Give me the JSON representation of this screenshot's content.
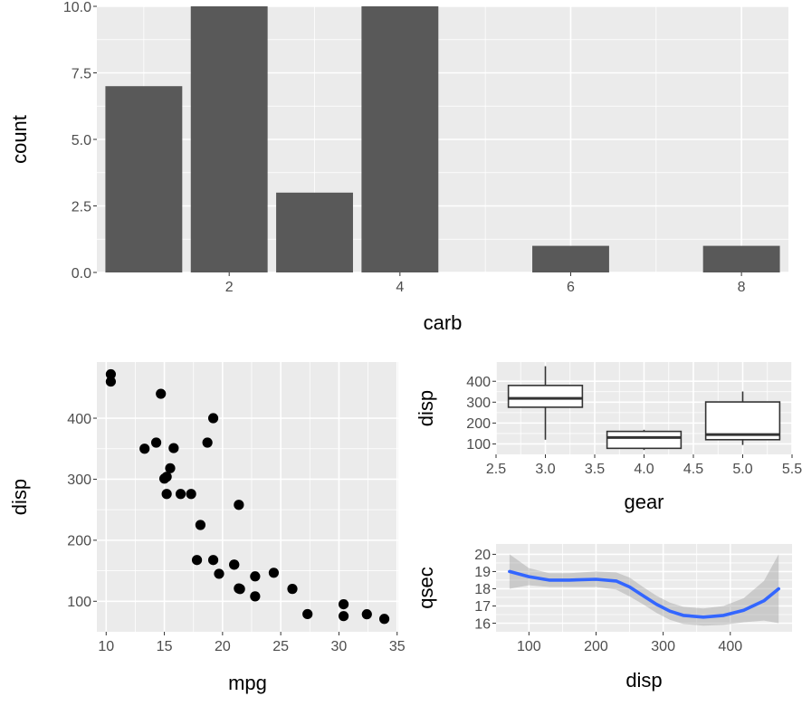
{
  "chart_data": [
    {
      "type": "bar",
      "xlabel": "carb",
      "ylabel": "count",
      "categories": [
        1,
        2,
        3,
        4,
        6,
        8
      ],
      "values": [
        7,
        10,
        3,
        10,
        1,
        1
      ],
      "xlim": [
        0.45,
        8.55
      ],
      "ylim": [
        0,
        10
      ],
      "xticks": [
        2,
        4,
        6,
        8
      ],
      "xtick_labels": [
        "2",
        "4",
        "6",
        "8"
      ],
      "yticks": [
        0,
        2.5,
        5,
        7.5,
        10
      ],
      "ytick_labels": [
        "0.0",
        "2.5",
        "5.0",
        "7.5",
        "10.0"
      ],
      "bar_color": "#595959"
    },
    {
      "type": "scatter",
      "xlabel": "mpg",
      "ylabel": "disp",
      "x": [
        21.0,
        21.0,
        22.8,
        21.4,
        18.7,
        18.1,
        14.3,
        24.4,
        22.8,
        19.2,
        17.8,
        16.4,
        17.3,
        15.2,
        10.4,
        10.4,
        14.7,
        32.4,
        30.4,
        33.9,
        21.5,
        15.5,
        15.2,
        13.3,
        19.2,
        27.3,
        26.0,
        30.4,
        15.8,
        19.7,
        15.0,
        21.4
      ],
      "y": [
        160,
        160,
        108,
        258,
        360,
        225,
        360,
        146.7,
        140.8,
        167.6,
        167.6,
        275.8,
        275.8,
        275.8,
        472,
        460,
        440,
        78.7,
        75.7,
        71.1,
        120.1,
        318,
        304,
        350,
        400,
        79,
        120.3,
        95.1,
        351,
        145,
        301,
        121
      ],
      "xlim": [
        9.2,
        35.1
      ],
      "ylim": [
        50,
        492
      ],
      "xticks": [
        10,
        15,
        20,
        25,
        30,
        35
      ],
      "xtick_labels": [
        "10",
        "15",
        "20",
        "25",
        "30",
        "35"
      ],
      "yticks": [
        100,
        200,
        300,
        400
      ],
      "ytick_labels": [
        "100",
        "200",
        "300",
        "400"
      ],
      "point_color": "#000000"
    },
    {
      "type": "box",
      "xlabel": "gear",
      "ylabel": "disp",
      "boxes": [
        {
          "x": 3,
          "min": 120.1,
          "q1": 275.8,
          "median": 318,
          "q3": 380,
          "max": 472
        },
        {
          "x": 4,
          "min": 71.1,
          "q1": 78.9,
          "median": 130.9,
          "q3": 160,
          "max": 167.6
        },
        {
          "x": 5,
          "min": 95.1,
          "q1": 120.3,
          "median": 145,
          "q3": 301,
          "max": 351
        }
      ],
      "xlim": [
        2.5,
        5.5
      ],
      "ylim": [
        50,
        492
      ],
      "xticks": [
        2.5,
        3.0,
        3.5,
        4.0,
        4.5,
        5.0,
        5.5
      ],
      "xtick_labels": [
        "2.5",
        "3.0",
        "3.5",
        "4.0",
        "4.5",
        "5.0",
        "5.5"
      ],
      "yticks": [
        100,
        200,
        300,
        400
      ],
      "ytick_labels": [
        "100",
        "200",
        "300",
        "400"
      ]
    },
    {
      "type": "line",
      "xlabel": "disp",
      "ylabel": "qsec",
      "x": [
        71.1,
        100,
        130,
        160,
        200,
        230,
        250,
        270,
        290,
        310,
        330,
        360,
        390,
        420,
        450,
        472
      ],
      "y": [
        19.0,
        18.7,
        18.5,
        18.5,
        18.55,
        18.45,
        18.1,
        17.6,
        17.1,
        16.7,
        16.45,
        16.35,
        16.45,
        16.75,
        17.3,
        18.0
      ],
      "ci_lower": [
        18.0,
        18.2,
        18.1,
        18.1,
        18.1,
        17.95,
        17.55,
        17.1,
        16.6,
        16.2,
        15.95,
        15.85,
        15.9,
        16.05,
        16.15,
        16.0
      ],
      "ci_upper": [
        20.0,
        19.2,
        18.9,
        18.9,
        19.0,
        18.95,
        18.65,
        18.1,
        17.6,
        17.2,
        16.95,
        16.85,
        17.0,
        17.45,
        18.45,
        20.0
      ],
      "xlim": [
        51,
        492
      ],
      "ylim": [
        15.5,
        20.6
      ],
      "xticks": [
        100,
        200,
        300,
        400
      ],
      "xtick_labels": [
        "100",
        "200",
        "300",
        "400"
      ],
      "yticks": [
        16,
        17,
        18,
        19,
        20
      ],
      "ytick_labels": [
        "16",
        "17",
        "18",
        "19",
        "20"
      ],
      "line_color": "#3366ff",
      "ribbon_color": "#999999"
    }
  ]
}
